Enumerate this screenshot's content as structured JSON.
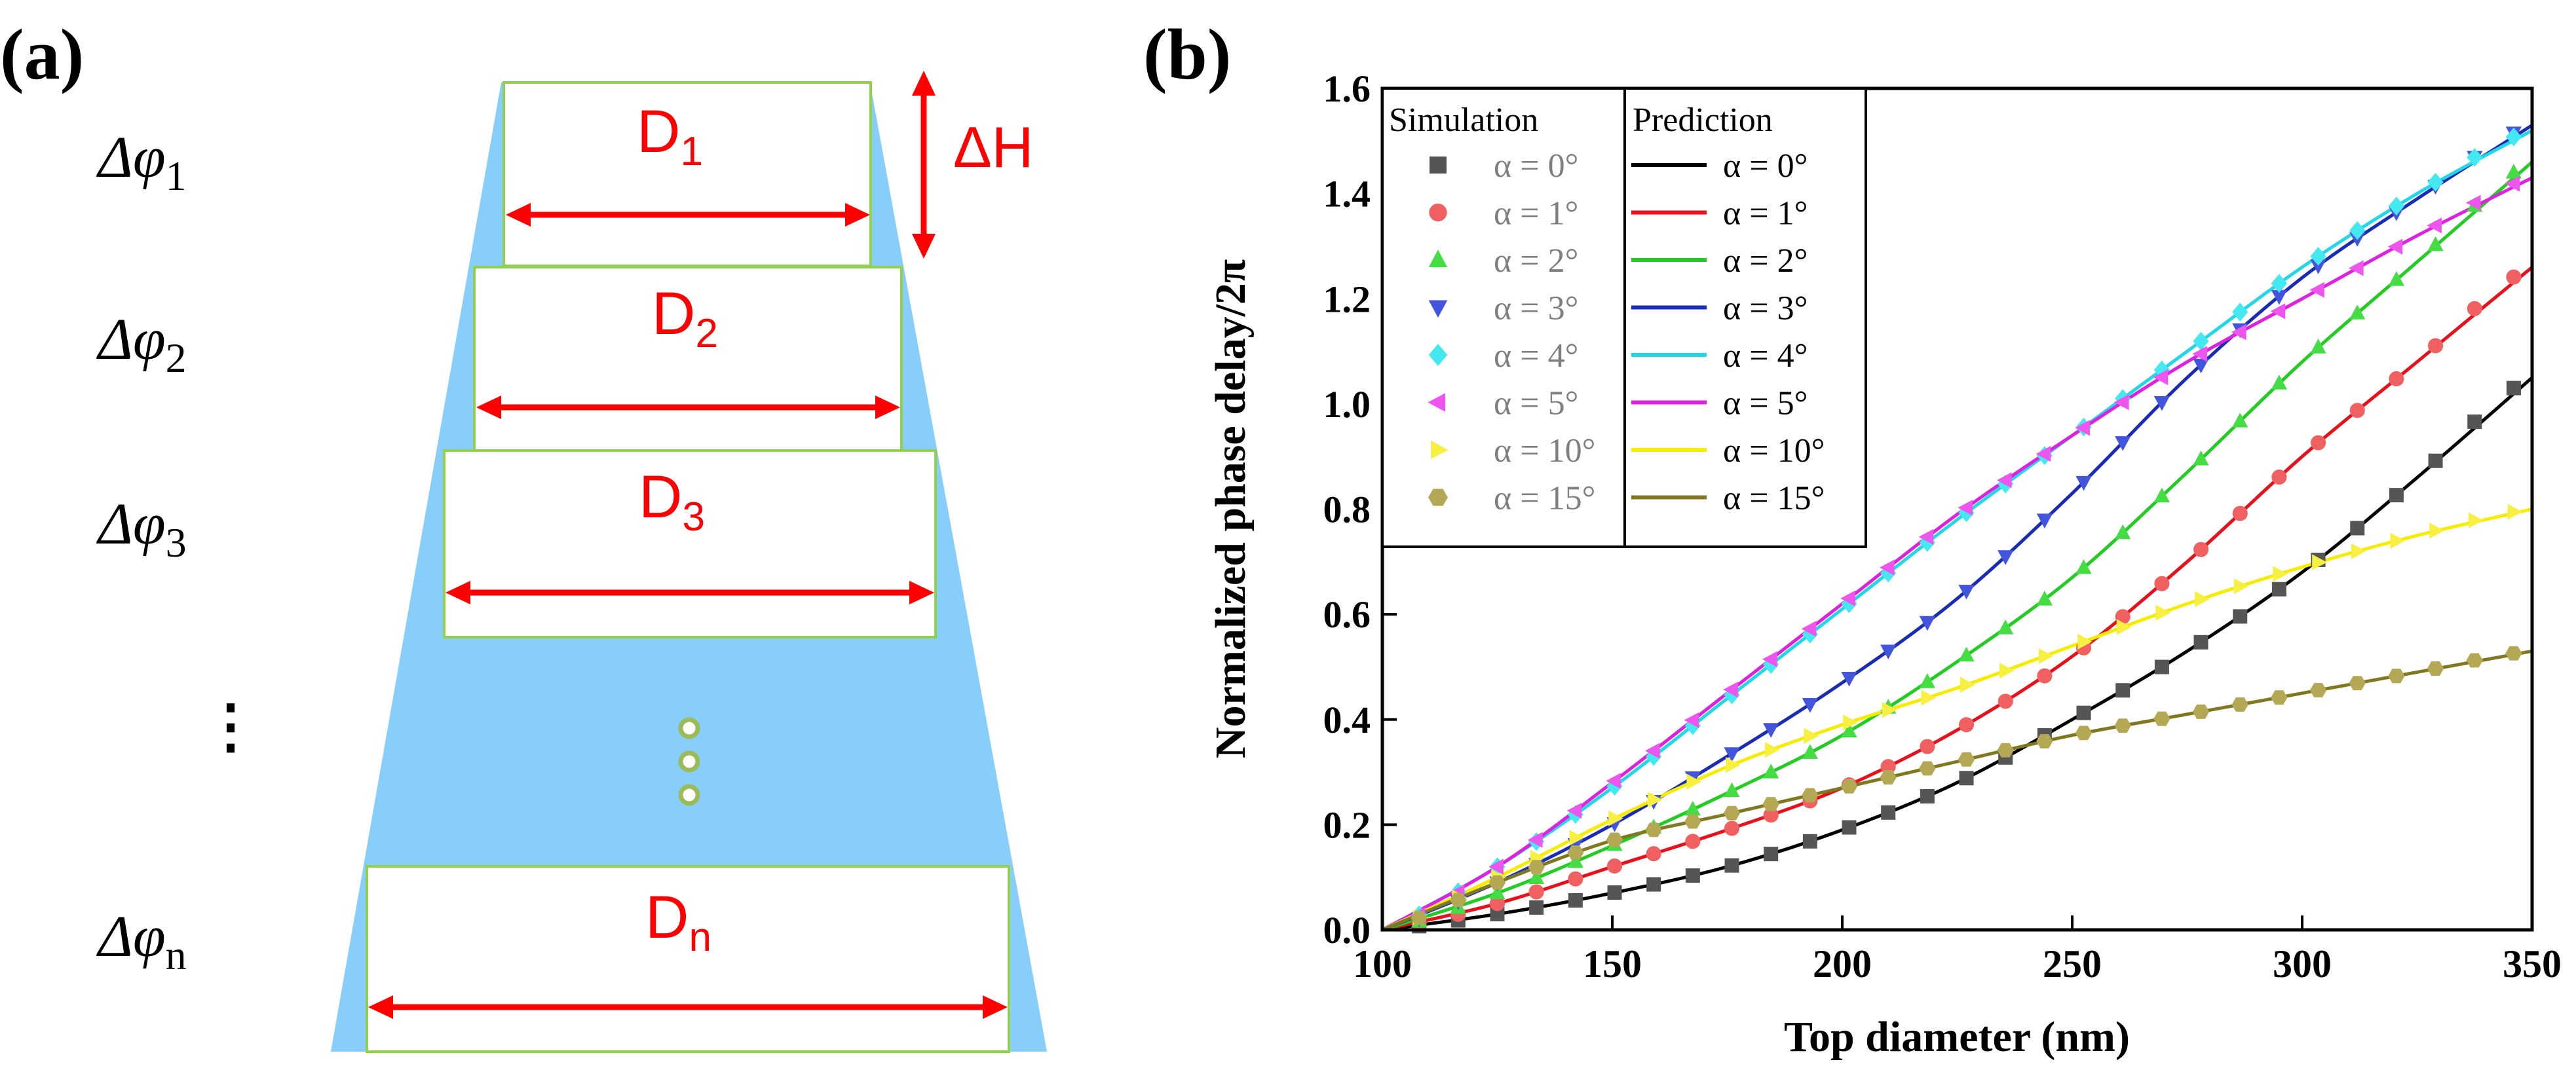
{
  "panel_a": {
    "label": "(a)",
    "delta_h": "ΔH",
    "rows": [
      {
        "phase_main": "Δφ",
        "phase_sub": "1",
        "d_main": "D",
        "d_sub": "1"
      },
      {
        "phase_main": "Δφ",
        "phase_sub": "2",
        "d_main": "D",
        "d_sub": "2"
      },
      {
        "phase_main": "Δφ",
        "phase_sub": "3",
        "d_main": "D",
        "d_sub": "3"
      },
      {
        "phase_main": "Δφ",
        "phase_sub": "n",
        "d_main": "D",
        "d_sub": "n"
      }
    ],
    "ellipsis": "⋮",
    "colors": {
      "cone": "#87cefa",
      "box_border": "#92d050",
      "arrow": "#ff0000",
      "dots": "#9bbb59"
    }
  },
  "panel_b": {
    "label": "(b)"
  },
  "chart_data": {
    "type": "scatter",
    "title": "",
    "xlabel": "Top diameter (nm)",
    "ylabel": "Normalized phase delay/2π",
    "xlim": [
      100,
      350
    ],
    "ylim": [
      0,
      1.6
    ],
    "xticks": [
      "100",
      "150",
      "200",
      "250",
      "300",
      "350"
    ],
    "yticks": [
      "0.0",
      "0.2",
      "0.4",
      "0.6",
      "0.8",
      "1.0",
      "1.2",
      "1.4",
      "1.6"
    ],
    "legend_position": "top-left",
    "legend_simulation_title": "Simulation",
    "legend_prediction_title": "Prediction",
    "x": [
      100,
      125,
      150,
      175,
      200,
      225,
      250,
      275,
      300,
      325,
      350
    ],
    "series": [
      {
        "name": "α = 0°",
        "color": "#000000",
        "marker_color": "#555555",
        "marker": "square",
        "values": [
          0.0,
          0.03,
          0.07,
          0.12,
          0.19,
          0.28,
          0.4,
          0.53,
          0.68,
          0.86,
          1.05
        ]
      },
      {
        "name": "α = 1°",
        "color": "#e8101a",
        "marker_color": "#f06060",
        "marker": "circle",
        "values": [
          0.0,
          0.05,
          0.12,
          0.19,
          0.27,
          0.38,
          0.52,
          0.7,
          0.9,
          1.08,
          1.26
        ]
      },
      {
        "name": "α = 2°",
        "color": "#22cc22",
        "marker_color": "#44dd44",
        "marker": "triangle-up",
        "values": [
          0.0,
          0.07,
          0.16,
          0.26,
          0.37,
          0.51,
          0.67,
          0.87,
          1.08,
          1.27,
          1.46
        ]
      },
      {
        "name": "α = 3°",
        "color": "#1a2bb5",
        "marker_color": "#4455dd",
        "marker": "triangle-down",
        "values": [
          0.0,
          0.09,
          0.2,
          0.33,
          0.47,
          0.63,
          0.83,
          1.05,
          1.24,
          1.39,
          1.53
        ]
      },
      {
        "name": "α = 4°",
        "color": "#22d8e8",
        "marker_color": "#44e8f0",
        "marker": "diamond",
        "values": [
          0.0,
          0.12,
          0.27,
          0.44,
          0.61,
          0.78,
          0.94,
          1.1,
          1.26,
          1.4,
          1.52
        ]
      },
      {
        "name": "α = 5°",
        "color": "#e020e0",
        "marker_color": "#ee55ee",
        "marker": "triangle-left",
        "values": [
          0.0,
          0.12,
          0.28,
          0.45,
          0.62,
          0.79,
          0.94,
          1.08,
          1.2,
          1.32,
          1.43
        ]
      },
      {
        "name": "α = 10°",
        "color": "#f5ec00",
        "marker_color": "#f8f040",
        "marker": "triangle-right",
        "values": [
          0.0,
          0.1,
          0.21,
          0.31,
          0.39,
          0.46,
          0.54,
          0.62,
          0.69,
          0.75,
          0.8
        ]
      },
      {
        "name": "α = 15°",
        "color": "#807820",
        "marker_color": "#b5a855",
        "marker": "hexagon",
        "values": [
          0.0,
          0.09,
          0.17,
          0.22,
          0.27,
          0.32,
          0.37,
          0.41,
          0.45,
          0.49,
          0.53
        ]
      }
    ]
  }
}
